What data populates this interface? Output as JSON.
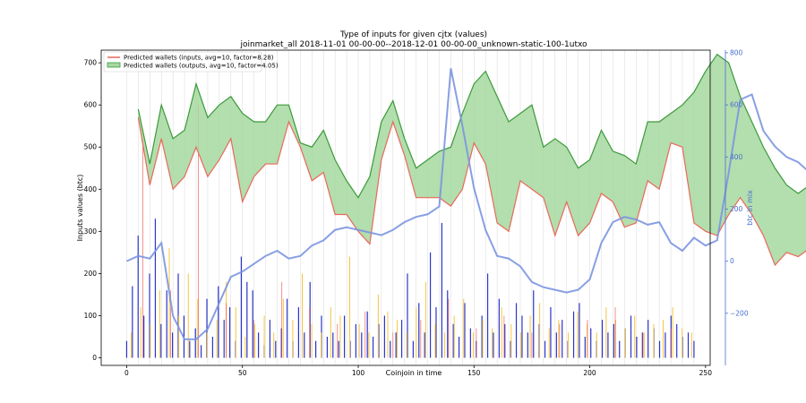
{
  "chart_data": {
    "type": "bar",
    "title": "Type of inputs for given cjtx (values)",
    "subtitle": "joinmarket_all 2018-11-01 00-00-00--2018-12-01 00-00-00_unknown-static-100-1utxo",
    "xlabel": "Coinjoin in time",
    "ylabel": "Inputs values (btc)",
    "y2label": "btc in mix",
    "xlim": [
      -11,
      252
    ],
    "ylim": [
      -18,
      730
    ],
    "y2lim": [
      -400,
      810
    ],
    "x_ticks": [
      0,
      50,
      100,
      150,
      200,
      250
    ],
    "y_ticks": [
      0,
      100,
      200,
      300,
      400,
      500,
      600,
      700
    ],
    "y2_ticks": [
      -200,
      0,
      200,
      400,
      600,
      800
    ],
    "legend_position": "top-left",
    "grid": "vertical lines at selected coinjoins",
    "colors": {
      "inputs_line": "#e8695a",
      "outputs_line": "#3a9a3a",
      "fill_between": "#a6d8a0",
      "btc_in_mix": "#7b95e0",
      "bars_blue": "#2b35c8",
      "bars_yellow": "#f5c542",
      "bars_red": "#e84a4a",
      "right_axis": "#4a6fd0"
    },
    "series": [
      {
        "name": "Predicted wallets (inputs, avg=10, factor=8.28)",
        "axis": "left",
        "x_start": 5,
        "x_step": 5,
        "values": [
          570,
          410,
          520,
          400,
          430,
          500,
          430,
          470,
          520,
          370,
          430,
          460,
          460,
          560,
          500,
          420,
          440,
          340,
          340,
          300,
          270,
          470,
          560,
          480,
          380,
          380,
          380,
          360,
          400,
          510,
          460,
          320,
          300,
          420,
          400,
          380,
          290,
          370,
          290,
          320,
          390,
          370,
          310,
          320,
          420,
          400,
          510,
          500,
          320,
          300,
          290,
          340,
          380,
          340,
          290,
          220,
          250,
          240,
          260,
          275
        ]
      },
      {
        "name": "Predicted wallets (outputs, avg=10, factor=4.05)",
        "axis": "left",
        "x_start": 5,
        "x_step": 5,
        "values": [
          590,
          460,
          600,
          520,
          540,
          650,
          570,
          600,
          620,
          580,
          560,
          560,
          600,
          600,
          510,
          500,
          540,
          470,
          420,
          380,
          430,
          560,
          610,
          520,
          450,
          470,
          490,
          500,
          580,
          650,
          680,
          620,
          560,
          580,
          600,
          500,
          520,
          500,
          450,
          470,
          540,
          490,
          480,
          460,
          560,
          560,
          580,
          600,
          630,
          680,
          720,
          700,
          620,
          560,
          500,
          450,
          410,
          390,
          410,
          415
        ]
      },
      {
        "name": "",
        "axis": "right",
        "x_start": 0,
        "x_step": 5,
        "values": [
          0,
          20,
          10,
          70,
          -210,
          -300,
          -300,
          -260,
          -160,
          -60,
          -40,
          -10,
          20,
          40,
          10,
          20,
          60,
          80,
          120,
          130,
          120,
          110,
          100,
          120,
          150,
          170,
          180,
          210,
          740,
          520,
          280,
          120,
          20,
          10,
          -20,
          -80,
          -100,
          -110,
          -120,
          -110,
          -70,
          70,
          150,
          170,
          160,
          140,
          150,
          70,
          40,
          90,
          60,
          80,
          340,
          620,
          640,
          500,
          440,
          400,
          380,
          340,
          350,
          340,
          320,
          420,
          380,
          310,
          290
        ]
      }
    ],
    "bars": {
      "blue": [
        40,
        170,
        290,
        100,
        200,
        330,
        80,
        160,
        60,
        200,
        100,
        40,
        70,
        30,
        140,
        50,
        170,
        90,
        120,
        40,
        240,
        180,
        160,
        60,
        30,
        90,
        40,
        70,
        140,
        40,
        120,
        60,
        180,
        40,
        100,
        50,
        60,
        40,
        100,
        40,
        80,
        60,
        110,
        50,
        80,
        100,
        40,
        60,
        90,
        200,
        40,
        130,
        60,
        250,
        120,
        320,
        160,
        80,
        50,
        130,
        70,
        40,
        100,
        200,
        60,
        140,
        80,
        40,
        130,
        100,
        60,
        160,
        80,
        40,
        120,
        60,
        90,
        40,
        110,
        130,
        50,
        70,
        40,
        90,
        60,
        80,
        40,
        70,
        100,
        50,
        60,
        90,
        70,
        40,
        60,
        100,
        80,
        50,
        60,
        40
      ],
      "yellow": [
        60,
        120,
        80,
        160,
        260,
        100,
        200,
        140,
        60,
        90,
        180,
        120,
        50,
        80,
        100,
        60,
        140,
        90,
        200,
        80,
        60,
        120,
        100,
        240,
        80,
        60,
        150,
        110,
        90,
        60,
        120,
        180,
        80,
        60,
        100,
        140,
        60,
        90,
        70,
        120,
        80,
        60,
        100,
        130,
        70,
        90,
        60,
        110,
        80,
        60,
        120,
        90,
        70,
        100,
        60,
        80,
        90,
        120,
        70,
        60
      ],
      "red": [
        520,
        160,
        600,
        130,
        90,
        180,
        120,
        80,
        110,
        60,
        90,
        140,
        70,
        100,
        60,
        80,
        90,
        120,
        60,
        70
      ]
    }
  }
}
